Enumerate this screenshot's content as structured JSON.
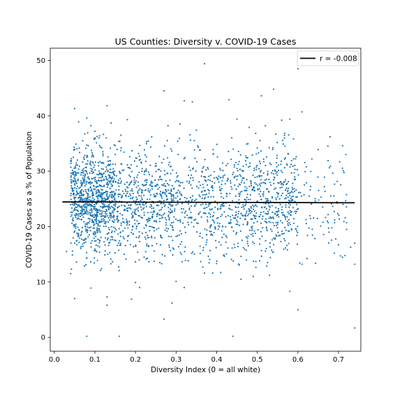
{
  "chart_data": {
    "type": "scatter",
    "title": "US Counties: Diversity v. COVID-19 Cases",
    "xlabel": "Diversity Index (0 = all white)",
    "ylabel": "COVID-19 Cases as a % of Population",
    "xlim": [
      -0.01,
      0.755
    ],
    "ylim": [
      -2.5,
      52.2
    ],
    "x_ticks": [
      0.0,
      0.1,
      0.2,
      0.3,
      0.4,
      0.5,
      0.6,
      0.7
    ],
    "x_tick_labels": [
      "0.0",
      "0.1",
      "0.2",
      "0.3",
      "0.4",
      "0.5",
      "0.6",
      "0.7"
    ],
    "y_ticks": [
      0,
      10,
      20,
      30,
      40,
      50
    ],
    "y_tick_labels": [
      "0",
      "10",
      "20",
      "30",
      "40",
      "50"
    ],
    "grid": false,
    "legend": {
      "position": "top-right",
      "entries": [
        {
          "label": "r = -0.008",
          "marker": "line",
          "color": "#000000"
        }
      ]
    },
    "regression_line": {
      "name": "r = -0.008",
      "x": [
        0.02,
        0.74
      ],
      "y": [
        24.45,
        24.3
      ],
      "color": "#000000"
    },
    "point_color": "#1f77b4",
    "series": [
      {
        "color": "#1f77b4",
        "points": [
          [
            0.03,
            15.5
          ],
          [
            0.04,
            11.5
          ],
          [
            0.05,
            7.0
          ],
          [
            0.05,
            41.3
          ],
          [
            0.06,
            38.9
          ],
          [
            0.07,
            35.5
          ],
          [
            0.08,
            39.6
          ],
          [
            0.08,
            0.2
          ],
          [
            0.09,
            8.9
          ],
          [
            0.09,
            38.2
          ],
          [
            0.1,
            37.2
          ],
          [
            0.11,
            36.0
          ],
          [
            0.12,
            33.1
          ],
          [
            0.13,
            41.8
          ],
          [
            0.13,
            5.8
          ],
          [
            0.13,
            7.3
          ],
          [
            0.14,
            38.7
          ],
          [
            0.16,
            0.2
          ],
          [
            0.18,
            39.3
          ],
          [
            0.19,
            6.9
          ],
          [
            0.2,
            9.9
          ],
          [
            0.21,
            9.0
          ],
          [
            0.24,
            36.2
          ],
          [
            0.26,
            13.5
          ],
          [
            0.27,
            44.5
          ],
          [
            0.27,
            3.3
          ],
          [
            0.28,
            38.2
          ],
          [
            0.29,
            6.2
          ],
          [
            0.3,
            10.1
          ],
          [
            0.31,
            38.5
          ],
          [
            0.32,
            42.7
          ],
          [
            0.32,
            9.0
          ],
          [
            0.34,
            42.5
          ],
          [
            0.35,
            37.4
          ],
          [
            0.37,
            49.4
          ],
          [
            0.37,
            11.6
          ],
          [
            0.39,
            11.6
          ],
          [
            0.41,
            11.7
          ],
          [
            0.43,
            42.9
          ],
          [
            0.44,
            0.2
          ],
          [
            0.45,
            39.4
          ],
          [
            0.46,
            10.5
          ],
          [
            0.48,
            37.9
          ],
          [
            0.49,
            11.0
          ],
          [
            0.51,
            43.6
          ],
          [
            0.52,
            38.2
          ],
          [
            0.53,
            11.2
          ],
          [
            0.54,
            44.8
          ],
          [
            0.56,
            39.2
          ],
          [
            0.58,
            8.3
          ],
          [
            0.58,
            39.4
          ],
          [
            0.6,
            48.5
          ],
          [
            0.6,
            5.0
          ],
          [
            0.61,
            40.7
          ],
          [
            0.61,
            13.2
          ],
          [
            0.65,
            33.9
          ],
          [
            0.68,
            30.9
          ],
          [
            0.69,
            15.2
          ],
          [
            0.7,
            16.7
          ],
          [
            0.71,
            34.6
          ],
          [
            0.72,
            19.5
          ],
          [
            0.73,
            16.3
          ],
          [
            0.74,
            17.0
          ],
          [
            0.74,
            13.2
          ],
          [
            0.74,
            1.7
          ]
        ]
      }
    ],
    "clusters": [
      {
        "x_range": [
          0.04,
          0.15
        ],
        "y_mean": 25.0,
        "y_sd": 4.6,
        "count": 900
      },
      {
        "x_range": [
          0.15,
          0.3
        ],
        "y_mean": 24.5,
        "y_sd": 4.9,
        "count": 560
      },
      {
        "x_range": [
          0.3,
          0.45
        ],
        "y_mean": 24.0,
        "y_sd": 5.0,
        "count": 380
      },
      {
        "x_range": [
          0.45,
          0.6
        ],
        "y_mean": 24.5,
        "y_sd": 5.0,
        "count": 520
      },
      {
        "x_range": [
          0.6,
          0.72
        ],
        "y_mean": 23.5,
        "y_sd": 5.0,
        "count": 90
      }
    ]
  }
}
